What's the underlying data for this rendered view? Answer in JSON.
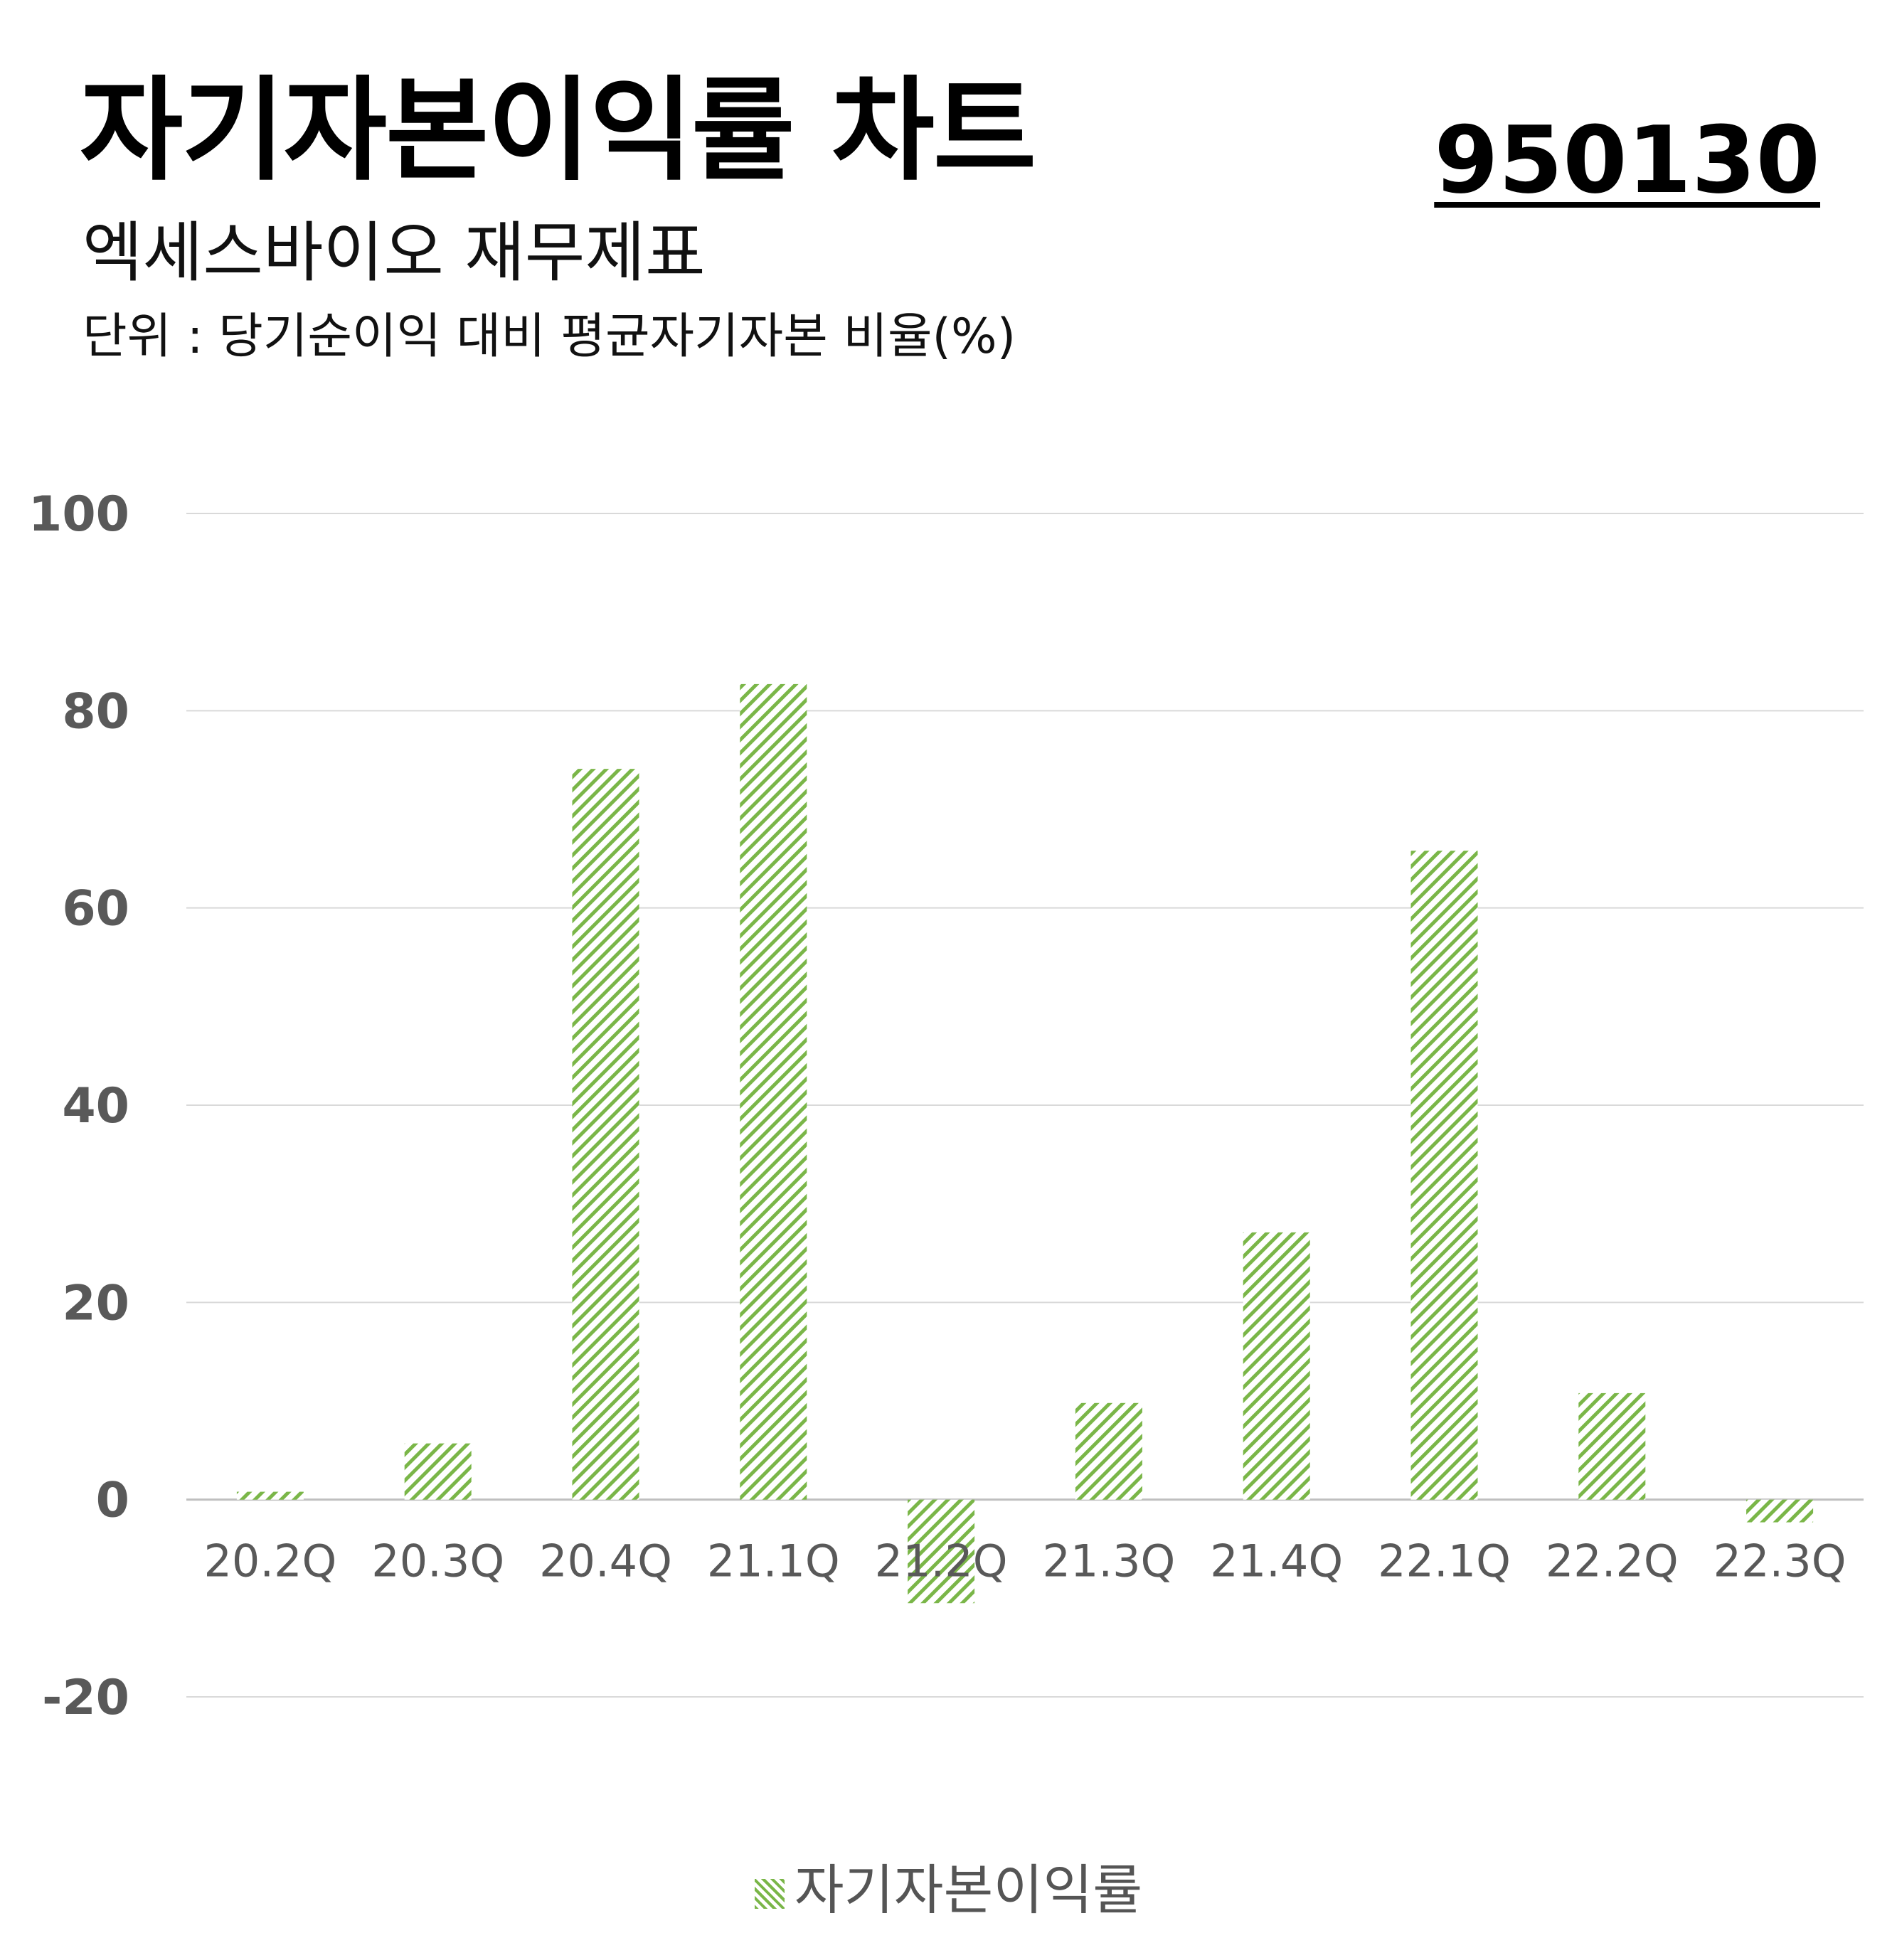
{
  "header": {
    "title": "자기자본이익률 차트",
    "code": "950130",
    "subtitle": "엑세스바이오 재무제표",
    "unit": "단위 : 당기순이익 대비 평균자기자본 비율(%)"
  },
  "colors": {
    "bar": "#7ab648",
    "grid": "#d9d9d9",
    "tick": "#595959",
    "category": "#595959"
  },
  "chart_data": {
    "type": "bar",
    "categories": [
      "20.2Q",
      "20.3Q",
      "20.4Q",
      "21.1Q",
      "21.2Q",
      "21.3Q",
      "21.4Q",
      "22.1Q",
      "22.2Q",
      "22.3Q"
    ],
    "series": [
      {
        "name": "자기자본이익률",
        "values": [
          0.8,
          5.7,
          74.1,
          82.7,
          -10.5,
          9.8,
          27.1,
          65.8,
          10.8,
          -2.3
        ]
      }
    ],
    "ylim": [
      -20,
      100
    ],
    "yticks": [
      100,
      80,
      60,
      40,
      20,
      0,
      -20
    ],
    "grid": true,
    "bar_pattern": "diagonal-hatch",
    "legend_position": "bottom"
  }
}
